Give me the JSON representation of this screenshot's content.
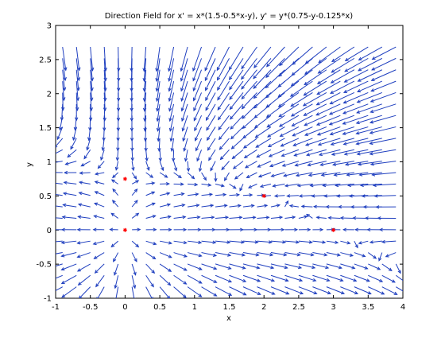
{
  "chart_data": {
    "type": "direction_field",
    "title": "Direction Field for x' = x*(1.5-0.5*x-y), y' = y*(0.75-y-0.125*x)",
    "xlabel": "x",
    "ylabel": "y",
    "xlim": [
      -1,
      4
    ],
    "ylim": [
      -1,
      3
    ],
    "grid": false,
    "x_ticks": [
      -1,
      -0.5,
      0,
      0.5,
      1,
      1.5,
      2,
      2.5,
      3,
      3.5,
      4
    ],
    "y_ticks": [
      -1,
      -0.5,
      0,
      0.5,
      1,
      1.5,
      2,
      2.5,
      3
    ],
    "field": {
      "x_start": -0.9,
      "x_step": 0.2,
      "x_count": 25,
      "y_start": -1,
      "y_step": 0.1675,
      "y_count": 23,
      "arrow_color": "#1f3fbf"
    },
    "equilibria": [
      {
        "x": 0,
        "y": 0
      },
      {
        "x": 0,
        "y": 0.75
      },
      {
        "x": 3,
        "y": 0
      },
      {
        "x": 2,
        "y": 0.5
      }
    ],
    "equilibrium_color": "#ff0000"
  }
}
